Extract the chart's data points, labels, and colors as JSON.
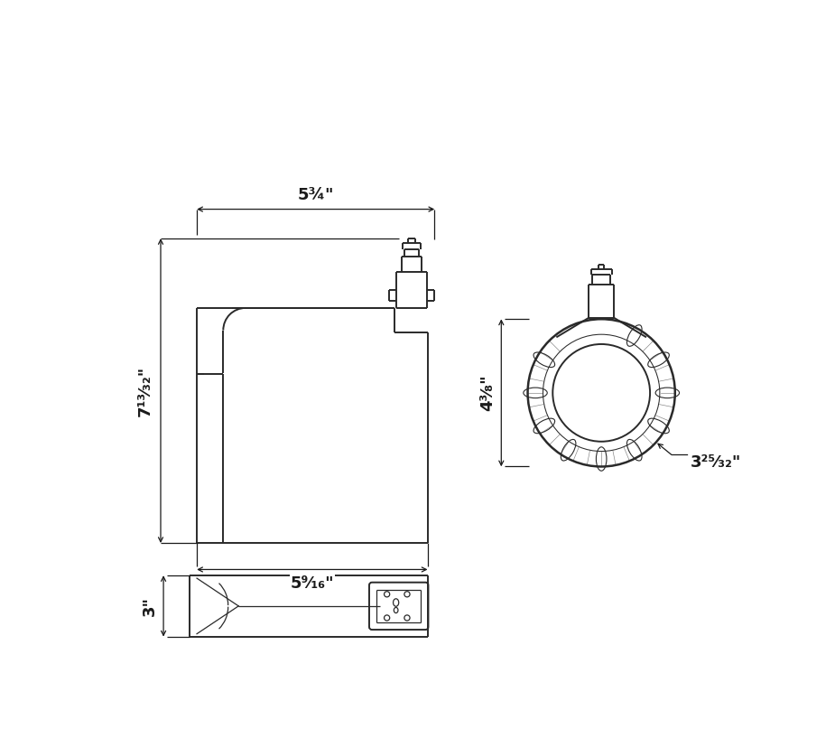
{
  "bg_color": "#ffffff",
  "line_color": "#2a2a2a",
  "dim_color": "#1a1a1a",
  "lw": 1.4,
  "dlw": 0.9,
  "dim_top_width": "5¾\"",
  "dim_side_height": "7¹³⁄₃₂\"",
  "dim_bottom_width": "5⁹⁄₁₆\"",
  "dim_front_height": "4³⁄₈\"",
  "dim_front_dia": "3²⁵⁄₃₂\"",
  "dim_depth": "3\""
}
